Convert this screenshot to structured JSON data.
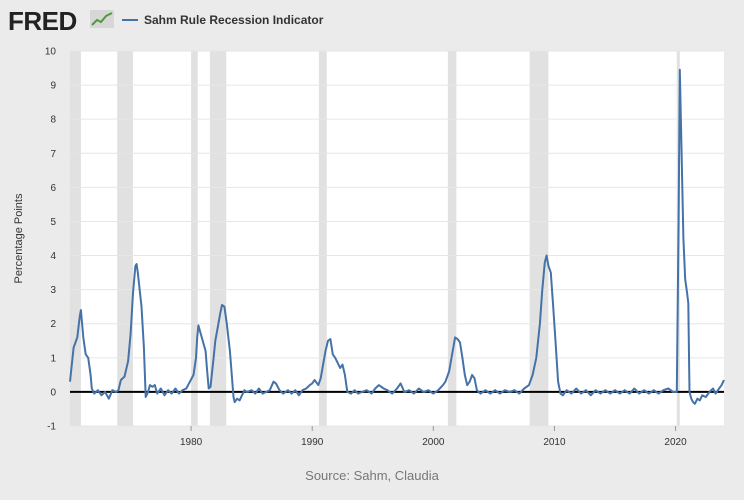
{
  "header": {
    "logo_text": "FRED",
    "legend_label": "Sahm Rule Recession Indicator",
    "series_color": "#4572a7"
  },
  "source": "Source: Sahm, Claudia",
  "chart_data": {
    "type": "line",
    "title": "",
    "xlabel": "",
    "ylabel": "Percentage Points",
    "xlim": [
      1970.0,
      2024.0
    ],
    "ylim": [
      -1,
      10
    ],
    "yticks": [
      -1,
      0,
      1,
      2,
      3,
      4,
      5,
      6,
      7,
      8,
      9,
      10
    ],
    "xticks": [
      1980,
      1990,
      2000,
      2010,
      2020
    ],
    "grid": true,
    "zero_line": true,
    "recessions": [
      [
        1970.0,
        1970.9
      ],
      [
        1973.9,
        1975.2
      ],
      [
        1980.0,
        1980.55
      ],
      [
        1981.55,
        1982.9
      ],
      [
        1990.55,
        1991.2
      ],
      [
        2001.2,
        2001.9
      ],
      [
        2007.95,
        2009.5
      ],
      [
        2020.1,
        2020.35
      ]
    ],
    "series": [
      {
        "name": "Sahm Rule Recession Indicator",
        "color": "#4572a7",
        "points": [
          [
            1970.0,
            0.3
          ],
          [
            1970.3,
            1.3
          ],
          [
            1970.6,
            1.6
          ],
          [
            1970.8,
            2.2
          ],
          [
            1970.9,
            2.4
          ],
          [
            1971.1,
            1.6
          ],
          [
            1971.3,
            1.1
          ],
          [
            1971.5,
            1.0
          ],
          [
            1971.7,
            0.5
          ],
          [
            1971.8,
            0.1
          ],
          [
            1972.0,
            -0.05
          ],
          [
            1972.3,
            0.05
          ],
          [
            1972.6,
            -0.1
          ],
          [
            1972.9,
            0.0
          ],
          [
            1973.2,
            -0.2
          ],
          [
            1973.5,
            0.05
          ],
          [
            1973.8,
            0.0
          ],
          [
            1974.0,
            0.05
          ],
          [
            1974.2,
            0.35
          ],
          [
            1974.5,
            0.45
          ],
          [
            1974.8,
            0.9
          ],
          [
            1975.0,
            1.7
          ],
          [
            1975.2,
            2.9
          ],
          [
            1975.4,
            3.7
          ],
          [
            1975.5,
            3.75
          ],
          [
            1975.6,
            3.5
          ],
          [
            1975.9,
            2.5
          ],
          [
            1976.1,
            1.3
          ],
          [
            1976.25,
            -0.15
          ],
          [
            1976.45,
            0.0
          ],
          [
            1976.6,
            0.2
          ],
          [
            1976.8,
            0.15
          ],
          [
            1977.0,
            0.2
          ],
          [
            1977.2,
            -0.05
          ],
          [
            1977.5,
            0.1
          ],
          [
            1977.8,
            -0.1
          ],
          [
            1978.1,
            0.05
          ],
          [
            1978.4,
            -0.05
          ],
          [
            1978.7,
            0.1
          ],
          [
            1979.0,
            -0.05
          ],
          [
            1979.3,
            0.05
          ],
          [
            1979.6,
            0.1
          ],
          [
            1979.9,
            0.3
          ],
          [
            1980.2,
            0.5
          ],
          [
            1980.4,
            1.0
          ],
          [
            1980.5,
            1.6
          ],
          [
            1980.6,
            1.95
          ],
          [
            1980.8,
            1.7
          ],
          [
            1981.0,
            1.45
          ],
          [
            1981.2,
            1.2
          ],
          [
            1981.3,
            0.7
          ],
          [
            1981.45,
            0.1
          ],
          [
            1981.6,
            0.15
          ],
          [
            1981.8,
            0.8
          ],
          [
            1982.0,
            1.5
          ],
          [
            1982.2,
            1.9
          ],
          [
            1982.4,
            2.3
          ],
          [
            1982.55,
            2.55
          ],
          [
            1982.75,
            2.5
          ],
          [
            1982.95,
            2.0
          ],
          [
            1983.2,
            1.2
          ],
          [
            1983.4,
            0.3
          ],
          [
            1983.5,
            -0.15
          ],
          [
            1983.6,
            -0.3
          ],
          [
            1983.8,
            -0.2
          ],
          [
            1984.0,
            -0.25
          ],
          [
            1984.2,
            -0.1
          ],
          [
            1984.4,
            0.05
          ],
          [
            1984.6,
            0.0
          ],
          [
            1985.0,
            0.05
          ],
          [
            1985.3,
            -0.05
          ],
          [
            1985.6,
            0.1
          ],
          [
            1985.9,
            -0.05
          ],
          [
            1986.2,
            0.0
          ],
          [
            1986.5,
            0.05
          ],
          [
            1986.8,
            0.3
          ],
          [
            1987.0,
            0.25
          ],
          [
            1987.3,
            0.05
          ],
          [
            1987.6,
            -0.05
          ],
          [
            1988.0,
            0.05
          ],
          [
            1988.3,
            -0.05
          ],
          [
            1988.6,
            0.05
          ],
          [
            1988.9,
            -0.1
          ],
          [
            1989.2,
            0.05
          ],
          [
            1989.5,
            0.1
          ],
          [
            1989.8,
            0.2
          ],
          [
            1990.0,
            0.25
          ],
          [
            1990.2,
            0.35
          ],
          [
            1990.5,
            0.2
          ],
          [
            1990.7,
            0.4
          ],
          [
            1990.9,
            0.8
          ],
          [
            1991.1,
            1.2
          ],
          [
            1991.3,
            1.5
          ],
          [
            1991.5,
            1.55
          ],
          [
            1991.7,
            1.1
          ],
          [
            1991.9,
            1.0
          ],
          [
            1992.1,
            0.85
          ],
          [
            1992.3,
            0.7
          ],
          [
            1992.5,
            0.8
          ],
          [
            1992.7,
            0.5
          ],
          [
            1992.9,
            0.0
          ],
          [
            1993.2,
            -0.05
          ],
          [
            1993.5,
            0.05
          ],
          [
            1993.8,
            -0.05
          ],
          [
            1994.1,
            0.0
          ],
          [
            1994.5,
            0.05
          ],
          [
            1994.9,
            -0.05
          ],
          [
            1995.2,
            0.1
          ],
          [
            1995.5,
            0.2
          ],
          [
            1995.9,
            0.1
          ],
          [
            1996.2,
            0.05
          ],
          [
            1996.6,
            -0.05
          ],
          [
            1997.0,
            0.1
          ],
          [
            1997.3,
            0.25
          ],
          [
            1997.6,
            0.0
          ],
          [
            1998.0,
            0.05
          ],
          [
            1998.4,
            -0.05
          ],
          [
            1998.8,
            0.1
          ],
          [
            1999.2,
            0.0
          ],
          [
            1999.6,
            0.05
          ],
          [
            2000.0,
            -0.05
          ],
          [
            2000.4,
            0.05
          ],
          [
            2000.8,
            0.2
          ],
          [
            2001.0,
            0.3
          ],
          [
            2001.3,
            0.6
          ],
          [
            2001.6,
            1.2
          ],
          [
            2001.8,
            1.6
          ],
          [
            2002.0,
            1.55
          ],
          [
            2002.2,
            1.45
          ],
          [
            2002.4,
            1.0
          ],
          [
            2002.6,
            0.5
          ],
          [
            2002.8,
            0.2
          ],
          [
            2003.0,
            0.3
          ],
          [
            2003.2,
            0.5
          ],
          [
            2003.4,
            0.4
          ],
          [
            2003.6,
            0.05
          ],
          [
            2003.9,
            -0.05
          ],
          [
            2004.3,
            0.05
          ],
          [
            2004.7,
            -0.05
          ],
          [
            2005.1,
            0.05
          ],
          [
            2005.5,
            -0.05
          ],
          [
            2005.9,
            0.05
          ],
          [
            2006.3,
            0.0
          ],
          [
            2006.7,
            0.05
          ],
          [
            2007.1,
            -0.05
          ],
          [
            2007.5,
            0.1
          ],
          [
            2007.9,
            0.2
          ],
          [
            2008.2,
            0.5
          ],
          [
            2008.5,
            1.0
          ],
          [
            2008.8,
            2.0
          ],
          [
            2009.0,
            3.0
          ],
          [
            2009.2,
            3.8
          ],
          [
            2009.35,
            4.0
          ],
          [
            2009.5,
            3.7
          ],
          [
            2009.7,
            3.5
          ],
          [
            2009.9,
            2.5
          ],
          [
            2010.1,
            1.4
          ],
          [
            2010.3,
            0.3
          ],
          [
            2010.5,
            -0.05
          ],
          [
            2010.7,
            -0.1
          ],
          [
            2011.0,
            0.05
          ],
          [
            2011.4,
            -0.05
          ],
          [
            2011.8,
            0.1
          ],
          [
            2012.2,
            -0.05
          ],
          [
            2012.6,
            0.05
          ],
          [
            2013.0,
            -0.1
          ],
          [
            2013.4,
            0.05
          ],
          [
            2013.8,
            -0.05
          ],
          [
            2014.2,
            0.05
          ],
          [
            2014.6,
            -0.05
          ],
          [
            2015.0,
            0.05
          ],
          [
            2015.4,
            -0.05
          ],
          [
            2015.8,
            0.05
          ],
          [
            2016.2,
            -0.05
          ],
          [
            2016.6,
            0.1
          ],
          [
            2017.0,
            -0.05
          ],
          [
            2017.4,
            0.05
          ],
          [
            2017.8,
            -0.05
          ],
          [
            2018.2,
            0.05
          ],
          [
            2018.6,
            -0.05
          ],
          [
            2019.0,
            0.05
          ],
          [
            2019.4,
            0.1
          ],
          [
            2019.8,
            0.0
          ],
          [
            2020.1,
            0.0
          ],
          [
            2020.25,
            5.0
          ],
          [
            2020.35,
            9.45
          ],
          [
            2020.5,
            7.0
          ],
          [
            2020.65,
            4.5
          ],
          [
            2020.8,
            3.3
          ],
          [
            2020.95,
            2.9
          ],
          [
            2021.05,
            2.6
          ],
          [
            2021.15,
            0.0
          ],
          [
            2021.3,
            -0.2
          ],
          [
            2021.45,
            -0.3
          ],
          [
            2021.6,
            -0.35
          ],
          [
            2021.8,
            -0.2
          ],
          [
            2022.0,
            -0.25
          ],
          [
            2022.2,
            -0.1
          ],
          [
            2022.5,
            -0.15
          ],
          [
            2022.8,
            0.0
          ],
          [
            2023.1,
            0.1
          ],
          [
            2023.3,
            -0.05
          ],
          [
            2023.5,
            0.05
          ],
          [
            2023.8,
            0.2
          ],
          [
            2024.0,
            0.35
          ]
        ]
      }
    ]
  }
}
